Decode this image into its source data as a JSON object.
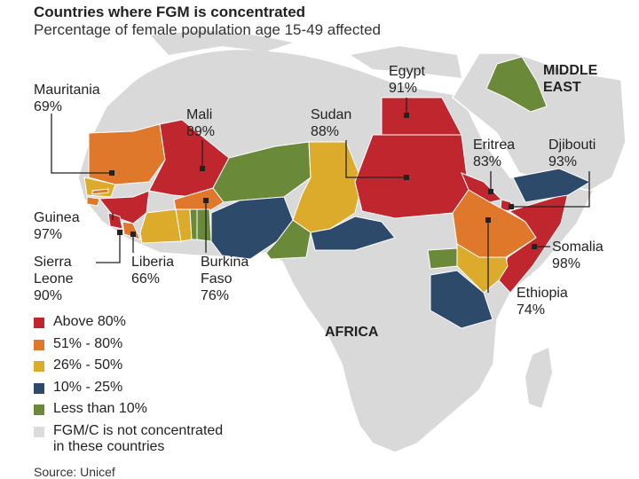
{
  "title": "Countries where FGM is concentrated",
  "subtitle": "Percentage of female population age 15-49 affected",
  "colors": {
    "above_80": "#c0262e",
    "r51_80": "#e0782c",
    "r26_50": "#dcab2c",
    "r10_25": "#2d4a6b",
    "below_10": "#6a8a3a",
    "not_concentrated": "#dcdcdc",
    "land": "#d9d9d9",
    "border": "#ffffff"
  },
  "regions": {
    "middle_east": "MIDDLE\nEAST",
    "africa": "AFRICA"
  },
  "countries": [
    {
      "name": "Mauritania",
      "value": "69%"
    },
    {
      "name": "Mali",
      "value": "89%"
    },
    {
      "name": "Sudan",
      "value": "88%"
    },
    {
      "name": "Egypt",
      "value": "91%"
    },
    {
      "name": "Eritrea",
      "value": "83%"
    },
    {
      "name": "Djibouti",
      "value": "93%"
    },
    {
      "name": "Guinea",
      "value": "97%"
    },
    {
      "name": "Sierra\nLeone",
      "value": "90%"
    },
    {
      "name": "Liberia",
      "value": "66%"
    },
    {
      "name": "Burkina\nFaso",
      "value": "76%"
    },
    {
      "name": "Somalia",
      "value": "98%"
    },
    {
      "name": "Ethiopia",
      "value": "74%"
    }
  ],
  "legend": [
    {
      "label": "Above 80%",
      "color": "#c0262e"
    },
    {
      "label": "51% - 80%",
      "color": "#e0782c"
    },
    {
      "label": "26% - 50%",
      "color": "#dcab2c"
    },
    {
      "label": "10% - 25%",
      "color": "#2d4a6b"
    },
    {
      "label": "Less than 10%",
      "color": "#6a8a3a"
    },
    {
      "label": "FGM/C is not concentrated\nin these countries",
      "color": "#dcdcdc"
    }
  ],
  "source": "Source: Unicef"
}
